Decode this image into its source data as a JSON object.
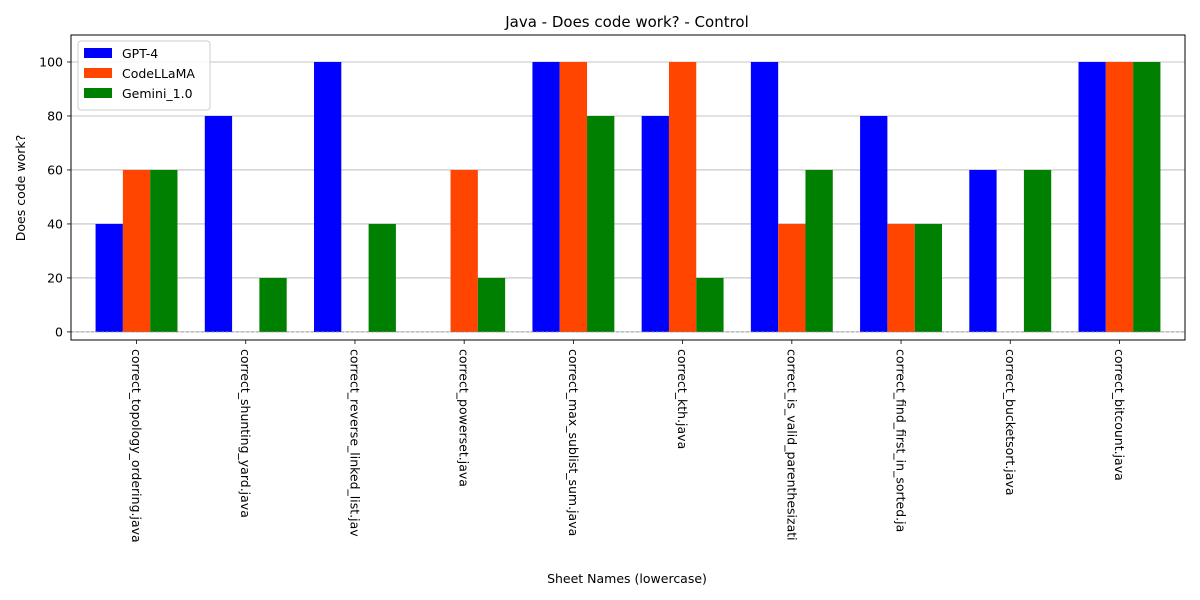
{
  "chart_data": {
    "type": "bar",
    "title": "Java - Does code work? - Control",
    "xlabel": "Sheet Names (lowercase)",
    "ylabel": "Does code work?",
    "ylim": [
      -3,
      110
    ],
    "yticks": [
      0,
      20,
      40,
      60,
      80,
      100
    ],
    "grid": "y",
    "legend_position": "top-left",
    "categories": [
      "correct_topology_ordering.java",
      "correct_shunting_yard.java",
      "correct_reverse_linked_list.jav",
      "correct_powerset.java",
      "correct_max_sublist_sum.java",
      "correct_kth.java",
      "correct_is_valid_parenthesizati",
      "correct_find_first_in_sorted.ja",
      "correct_bucketsort.java",
      "correct_bitcount.java"
    ],
    "series": [
      {
        "name": "GPT-4",
        "color": "#0000ff",
        "values": [
          40,
          80,
          100,
          0,
          100,
          80,
          100,
          80,
          60,
          100
        ]
      },
      {
        "name": "CodeLLaMA",
        "color": "#ff4500",
        "values": [
          60,
          0,
          0,
          60,
          100,
          100,
          40,
          40,
          0,
          100
        ]
      },
      {
        "name": "Gemini_1.0",
        "color": "#008000",
        "values": [
          60,
          20,
          40,
          20,
          80,
          20,
          60,
          40,
          60,
          100
        ]
      }
    ]
  }
}
